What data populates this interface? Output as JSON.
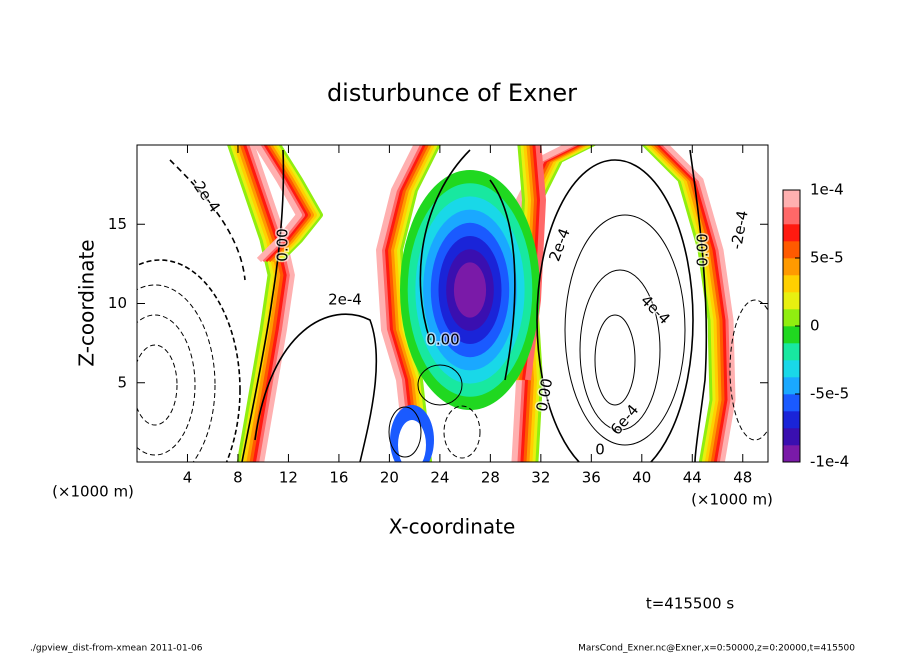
{
  "chart_data": {
    "type": "contour",
    "title": "disturbunce of Exner",
    "x_label": "X-coordinate",
    "y_label": "Z-coordinate",
    "x_unit": "(×1000 m)",
    "y_unit": "(×1000 m)",
    "xlim": [
      0,
      50
    ],
    "ylim": [
      0,
      20
    ],
    "xticks": [
      4,
      8,
      12,
      16,
      20,
      24,
      28,
      32,
      36,
      40,
      44,
      48
    ],
    "yticks": [
      5,
      10,
      15
    ],
    "colorbar": {
      "lim": [
        -0.0001,
        0.0001
      ],
      "ticks": [
        {
          "value": 0.0001,
          "label": "1e-4"
        },
        {
          "value": 5e-05,
          "label": "5e-5"
        },
        0,
        {
          "value": -5e-05,
          "label": "-5e-5"
        },
        {
          "value": -0.0001,
          "label": "-1e-4"
        }
      ],
      "colors": [
        "#7a1aa8",
        "#3a0fb0",
        "#1a24d8",
        "#1a5aff",
        "#1aa8ff",
        "#19d8e8",
        "#18e8a0",
        "#20d820",
        "#90ee10",
        "#e8f010",
        "#ffd000",
        "#ff9a00",
        "#ff5a00",
        "#ff1a10",
        "#ff6868",
        "#ffb0b0"
      ]
    },
    "contour_labels": [
      "-2e-4",
      "0.00",
      "2e-4",
      "4e-4",
      "6e-4",
      "0"
    ],
    "time_label": "t=415500 s",
    "footer_left": "./gpview_dist-from-xmean  2011-01-06",
    "footer_right": "MarsCond_Exner.nc@Exner,x=0:50000,z=0:20000,t=415500"
  }
}
